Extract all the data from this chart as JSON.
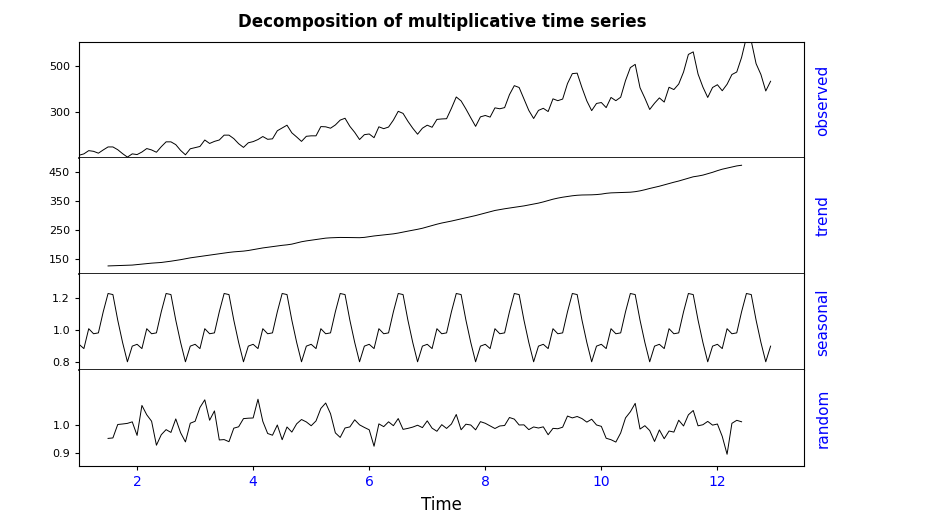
{
  "title": "Decomposition of multiplicative time series",
  "xlabel": "Time",
  "panel_labels": [
    "observed",
    "trend",
    "seasonal",
    "random"
  ],
  "x_ticks": [
    2,
    4,
    6,
    8,
    10,
    12
  ],
  "x_lim": [
    1,
    13.5
  ],
  "observed_ylim": [
    100,
    600
  ],
  "observed_yticks": [
    300,
    500
  ],
  "trend_ylim": [
    100,
    500
  ],
  "trend_yticks": [
    150,
    250,
    350,
    450
  ],
  "seasonal_ylim": [
    0.75,
    1.35
  ],
  "seasonal_yticks": [
    0.8,
    1.0,
    1.2
  ],
  "random_ylim": [
    0.85,
    1.2
  ],
  "random_yticks": [
    0.9,
    1.0
  ],
  "line_color": "black",
  "background_color": "white",
  "title_fontsize": 12,
  "label_fontsize": 11,
  "tick_fontsize": 8,
  "panel_label_color": "blue",
  "xtick_color": "blue",
  "ytick_color": "black"
}
